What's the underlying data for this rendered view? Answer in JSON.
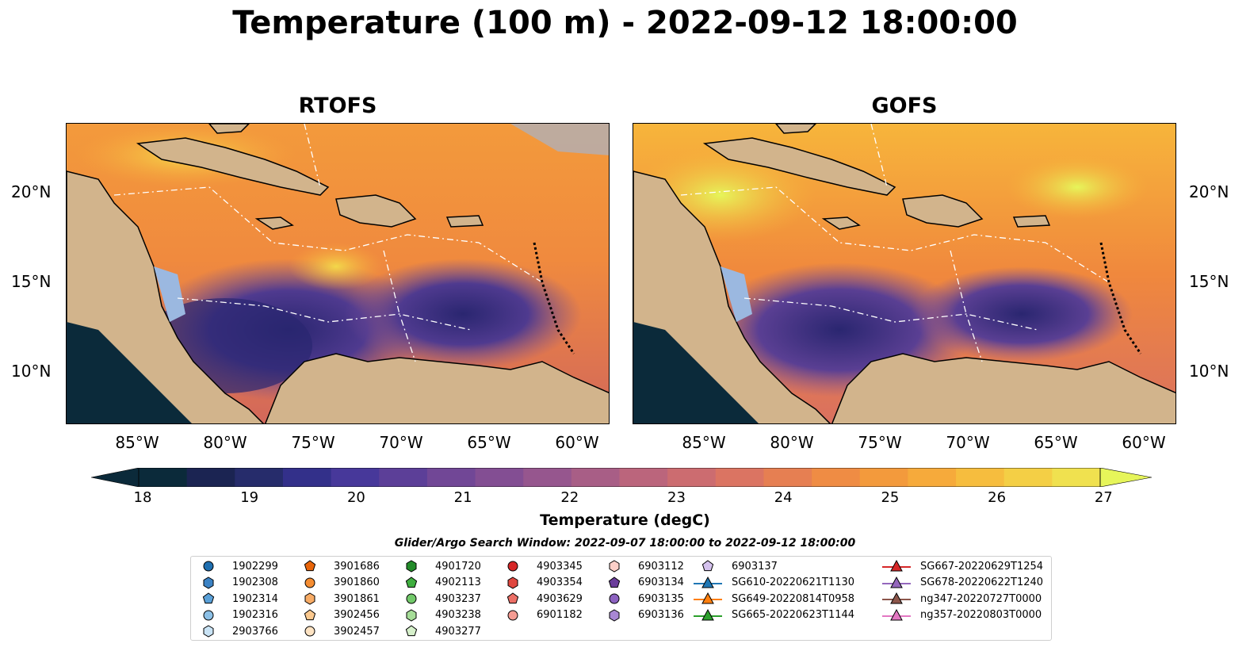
{
  "title": "Temperature (100 m) - 2022-09-12 18:00:00",
  "panels": [
    {
      "title": "RTOFS"
    },
    {
      "title": "GOFS"
    }
  ],
  "lat_labels": [
    "20°N",
    "15°N",
    "10°N"
  ],
  "lon_labels": [
    "85°W",
    "80°W",
    "75°W",
    "70°W",
    "65°W",
    "60°W"
  ],
  "colorbar": {
    "ticks": [
      "18",
      "19",
      "20",
      "21",
      "22",
      "23",
      "24",
      "25",
      "26",
      "27"
    ],
    "label": "Temperature (degC)",
    "min": 18,
    "max": 27
  },
  "search_window": "Glider/Argo Search Window: 2022-09-07 18:00:00 to 2022-09-12 18:00:00",
  "legend": [
    {
      "label": "1902299",
      "marker": "circle",
      "color": "#1f6fb0"
    },
    {
      "label": "1902308",
      "marker": "hexagon",
      "color": "#3b82c4"
    },
    {
      "label": "1902314",
      "marker": "pentagon",
      "color": "#5aa0d8"
    },
    {
      "label": "1902316",
      "marker": "circle",
      "color": "#8cc0e6"
    },
    {
      "label": "2903766",
      "marker": "hexagon",
      "color": "#c9e3f5"
    },
    {
      "label": "3901686",
      "marker": "pentagon",
      "color": "#e8650a"
    },
    {
      "label": "3901860",
      "marker": "circle",
      "color": "#f58d32"
    },
    {
      "label": "3901861",
      "marker": "hexagon",
      "color": "#f8ac66"
    },
    {
      "label": "3902456",
      "marker": "pentagon",
      "color": "#fbc98f"
    },
    {
      "label": "3902457",
      "marker": "circle",
      "color": "#fde3c3"
    },
    {
      "label": "4901720",
      "marker": "hexagon",
      "color": "#238b2a"
    },
    {
      "label": "4902113",
      "marker": "pentagon",
      "color": "#3fae3f"
    },
    {
      "label": "4903237",
      "marker": "circle",
      "color": "#72c96a"
    },
    {
      "label": "4903238",
      "marker": "hexagon",
      "color": "#a6dd98"
    },
    {
      "label": "4903277",
      "marker": "pentagon",
      "color": "#d6f0cb"
    },
    {
      "label": "4903345",
      "marker": "circle",
      "color": "#d62728"
    },
    {
      "label": "4903354",
      "marker": "hexagon",
      "color": "#e0473f"
    },
    {
      "label": "4903629",
      "marker": "pentagon",
      "color": "#ec6f66"
    },
    {
      "label": "6901182",
      "marker": "circle",
      "color": "#f59c93"
    },
    {
      "label": "6903112",
      "marker": "hexagon",
      "color": "#fbcfc8"
    },
    {
      "label": "6903134",
      "marker": "pentagon",
      "color": "#6a3d9a"
    },
    {
      "label": "6903135",
      "marker": "circle",
      "color": "#8c62c0"
    },
    {
      "label": "6903136",
      "marker": "hexagon",
      "color": "#a887d3"
    },
    {
      "label": "6903137",
      "marker": "pentagon",
      "color": "#d5c2ee"
    },
    {
      "label": "SG610-20220621T1130",
      "marker": "triangle-line",
      "color": "#1f77b4"
    },
    {
      "label": "SG649-20220814T0958",
      "marker": "triangle-line",
      "color": "#ff7f0e"
    },
    {
      "label": "SG665-20220623T1144",
      "marker": "triangle-line",
      "color": "#2ca02c"
    },
    {
      "label": "SG667-20220629T1254",
      "marker": "triangle-line",
      "color": "#d62728"
    },
    {
      "label": "SG678-20220622T1240",
      "marker": "triangle-line",
      "color": "#9467bd"
    },
    {
      "label": "ng347-20220727T0000",
      "marker": "triangle-line",
      "color": "#8c564b"
    },
    {
      "label": "ng357-20220803T0000",
      "marker": "triangle-line",
      "color": "#e377c2"
    }
  ],
  "colors": {
    "land": "#d2b48c",
    "shallow": "#9bb8e0",
    "palette": [
      "#0b2a3a",
      "#2d2a7a",
      "#5a3f93",
      "#8a5590",
      "#b5607d",
      "#d97060",
      "#f0883d",
      "#f7b53b",
      "#f1e24e",
      "#e6f55a"
    ]
  }
}
